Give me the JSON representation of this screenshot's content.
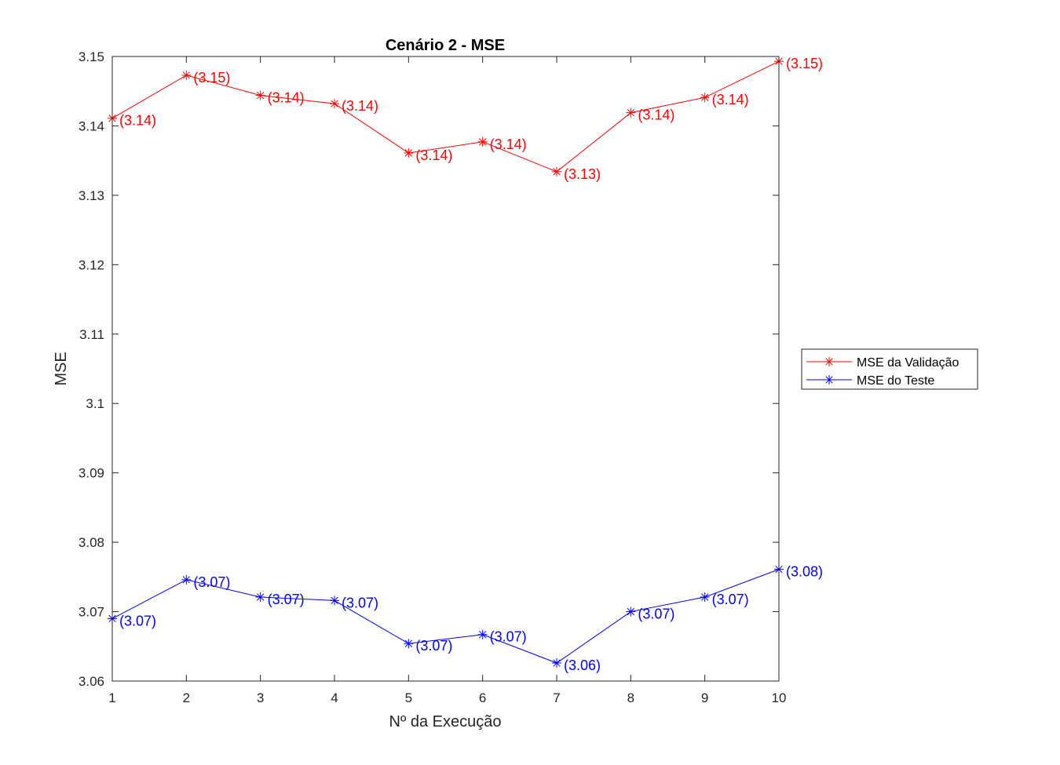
{
  "chart_data": {
    "type": "line",
    "title": "Cenário 2 - MSE",
    "xlabel": "Nº da Execução",
    "ylabel": "MSE",
    "xlim": [
      1,
      10
    ],
    "ylim": [
      3.06,
      3.15
    ],
    "x": [
      1,
      2,
      3,
      4,
      5,
      6,
      7,
      8,
      9,
      10
    ],
    "xticks": [
      "1",
      "2",
      "3",
      "4",
      "5",
      "6",
      "7",
      "8",
      "9",
      "10"
    ],
    "yticks": [
      3.06,
      3.07,
      3.08,
      3.09,
      3.1,
      3.11,
      3.12,
      3.13,
      3.14,
      3.15
    ],
    "yticklabels": [
      "3.06",
      "3.07",
      "3.08",
      "3.09",
      "3.1",
      "3.11",
      "3.12",
      "3.13",
      "3.14",
      "3.15"
    ],
    "grid": false,
    "legend_position": "right",
    "series": [
      {
        "name": "MSE da Validação",
        "color": "#ff0000",
        "marker": "asterisk",
        "values": [
          3.1411,
          3.1473,
          3.1444,
          3.1432,
          3.1361,
          3.1377,
          3.1334,
          3.1419,
          3.1441,
          3.1493
        ],
        "labels": [
          "(3.14)",
          "(3.15)",
          "(3.14)",
          "(3.14)",
          "(3.14)",
          "(3.14)",
          "(3.13)",
          "(3.14)",
          "(3.14)",
          "(3.15)"
        ]
      },
      {
        "name": "MSE do Teste",
        "color": "#0000ff",
        "marker": "asterisk",
        "values": [
          3.069,
          3.0746,
          3.0721,
          3.0716,
          3.0654,
          3.0667,
          3.0626,
          3.07,
          3.0721,
          3.0761
        ],
        "labels": [
          "(3.07)",
          "(3.07)",
          "(3.07)",
          "(3.07)",
          "(3.07)",
          "(3.07)",
          "(3.06)",
          "(3.07)",
          "(3.07)",
          "(3.08)"
        ]
      }
    ]
  }
}
